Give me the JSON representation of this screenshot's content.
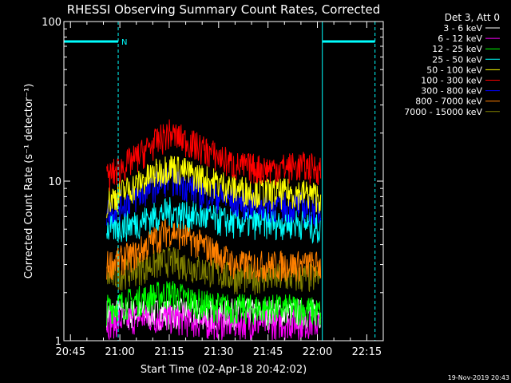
{
  "chart_data": {
    "type": "line",
    "title": "RHESSI Observing Summary Count Rates, Corrected",
    "xlabel": "Start Time (02-Apr-18 20:42:02)",
    "ylabel": "Corrected Count Rate (s⁻¹ detector⁻¹)",
    "x_unit": "minutes of day",
    "xlim": [
      1243,
      1340
    ],
    "ylim": [
      1,
      100
    ],
    "yscale": "log",
    "x_ticks": [
      {
        "x": 1245,
        "label": "20:45"
      },
      {
        "x": 1260,
        "label": "21:00"
      },
      {
        "x": 1275,
        "label": "21:15"
      },
      {
        "x": 1290,
        "label": "21:30"
      },
      {
        "x": 1305,
        "label": "21:45"
      },
      {
        "x": 1320,
        "label": "22:00"
      },
      {
        "x": 1335,
        "label": "22:15"
      }
    ],
    "y_ticks": [
      {
        "y": 1,
        "label": "1"
      },
      {
        "y": 10,
        "label": "10"
      },
      {
        "y": 100,
        "label": "100"
      }
    ],
    "legend_title": "Det 3, Att 0",
    "legend_position": "top-right",
    "series": [
      {
        "name": "3 - 6 keV",
        "color": "#ffffff",
        "x": [
          1256,
          1265,
          1275,
          1285,
          1295,
          1305,
          1315,
          1321
        ],
        "y": [
          1.5,
          1.5,
          1.5,
          1.5,
          1.5,
          1.5,
          1.5,
          1.5
        ]
      },
      {
        "name": "6 - 12 keV",
        "color": "#ff00ff",
        "x": [
          1256,
          1265,
          1275,
          1285,
          1295,
          1305,
          1315,
          1321
        ],
        "y": [
          1.3,
          1.4,
          1.4,
          1.3,
          1.3,
          1.3,
          1.3,
          1.3
        ]
      },
      {
        "name": "12 - 25 keV",
        "color": "#00ff00",
        "x": [
          1256,
          1265,
          1275,
          1285,
          1295,
          1305,
          1315,
          1321
        ],
        "y": [
          1.6,
          1.8,
          2.0,
          1.7,
          1.6,
          1.6,
          1.6,
          1.5
        ]
      },
      {
        "name": "25 - 50 keV",
        "color": "#00ffff",
        "x": [
          1256,
          1265,
          1275,
          1285,
          1295,
          1305,
          1315,
          1321
        ],
        "y": [
          5.0,
          5.5,
          6.5,
          6.0,
          5.5,
          5.5,
          5.5,
          5.0
        ]
      },
      {
        "name": "50 - 100 keV",
        "color": "#ffff00",
        "x": [
          1256,
          1265,
          1275,
          1285,
          1295,
          1305,
          1315,
          1321
        ],
        "y": [
          7.5,
          9.5,
          12.5,
          10.5,
          9.0,
          8.5,
          8.5,
          8.0
        ]
      },
      {
        "name": "100 - 300 keV",
        "color": "#ff0000",
        "x": [
          1256,
          1265,
          1275,
          1285,
          1295,
          1305,
          1315,
          1321
        ],
        "y": [
          10.5,
          14.0,
          20.0,
          16.0,
          12.5,
          12.0,
          12.5,
          12.0
        ]
      },
      {
        "name": "300 - 800 keV",
        "color": "#0000ff",
        "x": [
          1256,
          1265,
          1275,
          1285,
          1295,
          1305,
          1315,
          1321
        ],
        "y": [
          6.5,
          8.0,
          10.5,
          8.5,
          7.5,
          7.0,
          7.0,
          6.5
        ]
      },
      {
        "name": "800 - 7000 keV",
        "color": "#ff8000",
        "x": [
          1256,
          1265,
          1275,
          1285,
          1295,
          1305,
          1315,
          1321
        ],
        "y": [
          3.0,
          3.5,
          5.0,
          4.0,
          3.0,
          3.0,
          3.0,
          3.0
        ]
      },
      {
        "name": "7000 - 15000 keV",
        "color": "#808000",
        "x": [
          1256,
          1265,
          1275,
          1285,
          1295,
          1305,
          1315,
          1321
        ],
        "y": [
          2.5,
          2.8,
          3.2,
          2.8,
          2.5,
          2.5,
          2.5,
          2.5
        ]
      }
    ],
    "night_markers": [
      {
        "x_start": 1243,
        "x_end": 1259.5,
        "label": "N"
      },
      {
        "x_start": 1321.5,
        "x_end": 1337.5,
        "label": ""
      }
    ],
    "marker_color": "#00ffff",
    "grid": false
  },
  "footer": {
    "date": "19-Nov-2019 20:43"
  }
}
